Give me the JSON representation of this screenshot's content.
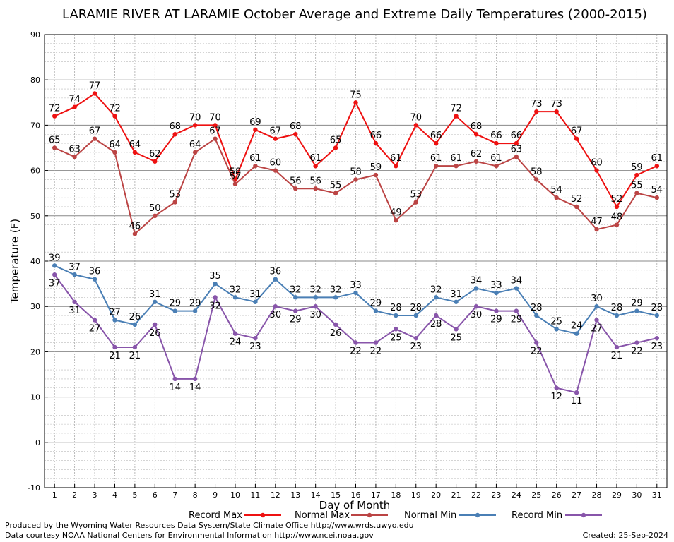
{
  "chart_data": {
    "type": "line",
    "title": "LARAMIE RIVER AT LARAMIE October Average and Extreme Daily Temperatures (2000-2015)",
    "xlabel": "Day of Month",
    "ylabel": "Temperature (F)",
    "x": [
      1,
      2,
      3,
      4,
      5,
      6,
      7,
      8,
      9,
      10,
      11,
      12,
      13,
      14,
      15,
      16,
      17,
      18,
      19,
      20,
      21,
      22,
      23,
      24,
      25,
      26,
      27,
      28,
      29,
      30,
      31
    ],
    "ylim": [
      -10,
      90
    ],
    "yticks": [
      -10,
      0,
      10,
      20,
      30,
      40,
      50,
      60,
      70,
      80,
      90
    ],
    "grid": true,
    "legend_position": "bottom",
    "series": [
      {
        "name": "Record Max",
        "color": "#ee1111",
        "values": [
          72,
          74,
          77,
          72,
          64,
          62,
          68,
          70,
          70,
          58,
          69,
          67,
          68,
          61,
          65,
          75,
          66,
          61,
          70,
          66,
          72,
          68,
          66,
          66,
          73,
          73,
          67,
          60,
          52,
          59,
          61
        ]
      },
      {
        "name": "Normal Max",
        "color": "#bb4444",
        "values": [
          65,
          63,
          67,
          64,
          46,
          50,
          53,
          64,
          67,
          57,
          61,
          60,
          56,
          56,
          55,
          58,
          59,
          49,
          53,
          61,
          61,
          62,
          61,
          63,
          58,
          54,
          52,
          47,
          48,
          55,
          54
        ]
      },
      {
        "name": "Normal Min",
        "color": "#4a7fb5",
        "values": [
          39,
          37,
          36,
          27,
          26,
          31,
          29,
          29,
          35,
          32,
          31,
          36,
          32,
          32,
          32,
          33,
          29,
          28,
          28,
          32,
          31,
          34,
          33,
          34,
          28,
          25,
          24,
          30,
          28,
          29,
          28
        ]
      },
      {
        "name": "Record Min",
        "color": "#8855aa",
        "values": [
          37,
          31,
          27,
          21,
          21,
          26,
          14,
          14,
          32,
          24,
          23,
          30,
          29,
          30,
          26,
          22,
          22,
          25,
          23,
          28,
          25,
          30,
          29,
          29,
          22,
          12,
          11,
          27,
          21,
          22,
          23
        ]
      }
    ]
  },
  "footer": {
    "line1": "Produced by the Wyoming Water Resources Data System/State Climate Office http://www.wrds.uwyo.edu",
    "line2": "Data courtesy NOAA National Centers for Environmental Information http://www.ncei.noaa.gov",
    "created": "Created:  25-Sep-2024"
  }
}
